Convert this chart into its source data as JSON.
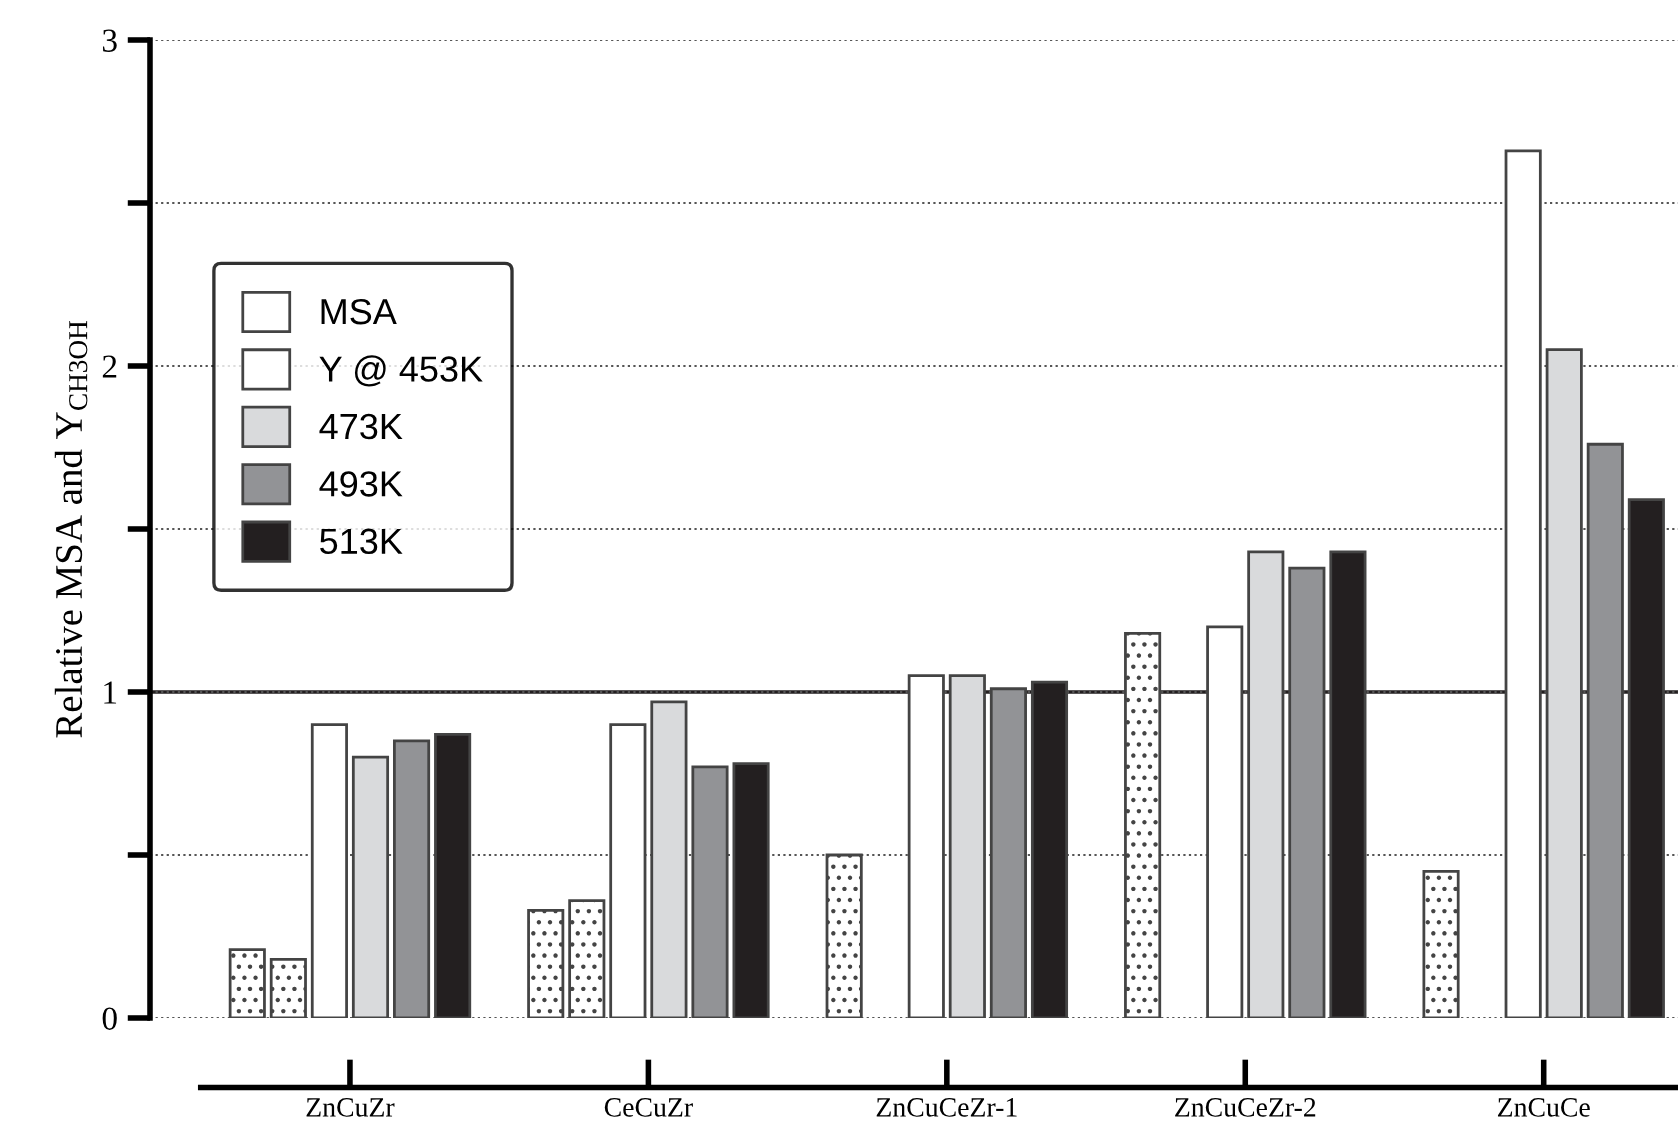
{
  "chart_data": {
    "type": "bar",
    "ylabel": "Relative MSA and Y$_{CH3OH}$",
    "categories": [
      "ZnCuZr",
      "CeCuZr",
      "ZnCuCeZr-1",
      "ZnCuCeZr-2",
      "ZnCuCe"
    ],
    "series": [
      {
        "name": "MSA",
        "color": "#ffffff",
        "values": [
          0.21,
          0.33,
          0.5,
          1.18,
          0.45
        ]
      },
      {
        "color": "#ffffff",
        "values": [
          0.18,
          0.36,
          null,
          null,
          null
        ]
      },
      {
        "name": "Y @ 453K",
        "color": "#ffffff",
        "values": [
          0.9,
          0.9,
          1.05,
          1.2,
          2.66
        ]
      },
      {
        "name": "473K",
        "color": "#d9dadc",
        "values": [
          0.8,
          0.97,
          1.05,
          1.43,
          2.05
        ]
      },
      {
        "name": "493K",
        "color": "#929396",
        "values": [
          0.85,
          0.77,
          1.01,
          1.38,
          1.76
        ]
      },
      {
        "name": "513K",
        "color": "#231f20",
        "values": [
          0.87,
          0.78,
          1.03,
          1.43,
          1.59
        ]
      }
    ],
    "ylim": [
      0,
      3
    ],
    "yticks": [
      0,
      {
        "value": 0.5,
        "label": null
      },
      1,
      {
        "value": 1.5,
        "label": null
      },
      2,
      {
        "value": 2.5,
        "label": null
      },
      3
    ],
    "grid": "y",
    "ref_lines": [
      {
        "axis": "y",
        "value": 1,
        "color": "#231f20",
        "line_style": "solid"
      }
    ],
    "legend": "top left"
  }
}
